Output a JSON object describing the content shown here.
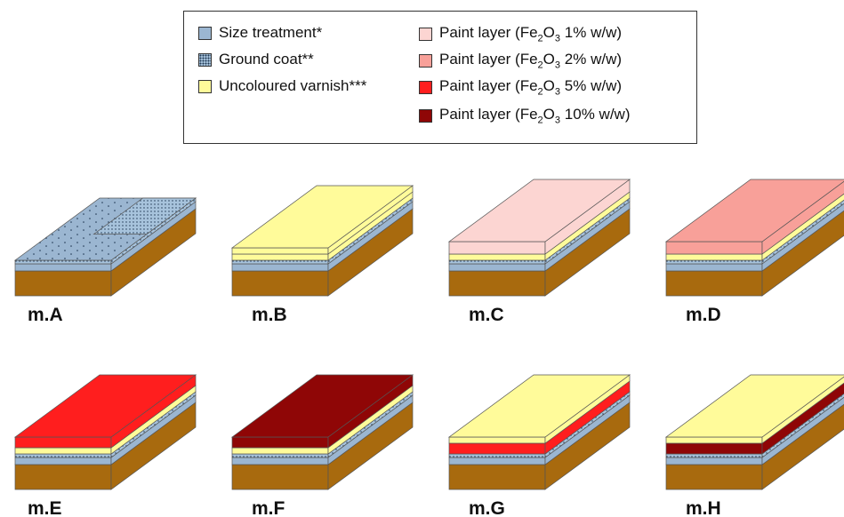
{
  "legend": {
    "items": [
      {
        "id": "size",
        "label": "Size treatment*",
        "color": "#9bb6d1",
        "pattern": "none"
      },
      {
        "id": "ground",
        "label": "Ground coat**",
        "color": "#a7c3dc",
        "pattern": "dots"
      },
      {
        "id": "varnish",
        "label": "Uncoloured varnish***",
        "color": "#fffb9a",
        "pattern": "none"
      },
      {
        "id": "paint1",
        "label": "Paint layer (Fe2O3 1% w/w)",
        "color": "#fcd5d2",
        "pattern": "none"
      },
      {
        "id": "paint2",
        "label": "Paint layer (Fe2O3 2% w/w)",
        "color": "#f8a099",
        "pattern": "none"
      },
      {
        "id": "paint5",
        "label": "Paint layer (Fe2O3 5% w/w)",
        "color": "#ff1e1e",
        "pattern": "none"
      },
      {
        "id": "paint10",
        "label": "Paint layer (Fe2O3 10% w/w)",
        "color": "#8f0606",
        "pattern": "none"
      }
    ]
  },
  "colors": {
    "wood": "#a86a0e",
    "size": "#9bb6d1",
    "ground": "#a7c3dc",
    "varnish": "#fffb9a",
    "paint1": "#fcd5d2",
    "paint2": "#f8a099",
    "paint5": "#ff1e1e",
    "paint10": "#8f0606",
    "outline": "#555555"
  },
  "samples": [
    {
      "label": "m.A",
      "layers": [
        "ground"
      ],
      "top": "ground"
    },
    {
      "label": "m.B",
      "layers": [
        "ground",
        "varnish",
        "varnish"
      ],
      "top": "varnish"
    },
    {
      "label": "m.C",
      "layers": [
        "ground",
        "varnish",
        "paint1"
      ],
      "top": "paint1"
    },
    {
      "label": "m.D",
      "layers": [
        "ground",
        "varnish",
        "paint2"
      ],
      "top": "paint2"
    },
    {
      "label": "m.E",
      "layers": [
        "ground",
        "varnish",
        "paint5"
      ],
      "top": "paint5"
    },
    {
      "label": "m.F",
      "layers": [
        "ground",
        "varnish",
        "paint10"
      ],
      "top": "paint10"
    },
    {
      "label": "m.G",
      "layers": [
        "ground",
        "paint5",
        "varnish"
      ],
      "top": "varnish"
    },
    {
      "label": "m.H",
      "layers": [
        "ground",
        "paint10",
        "varnish"
      ],
      "top": "varnish"
    }
  ]
}
